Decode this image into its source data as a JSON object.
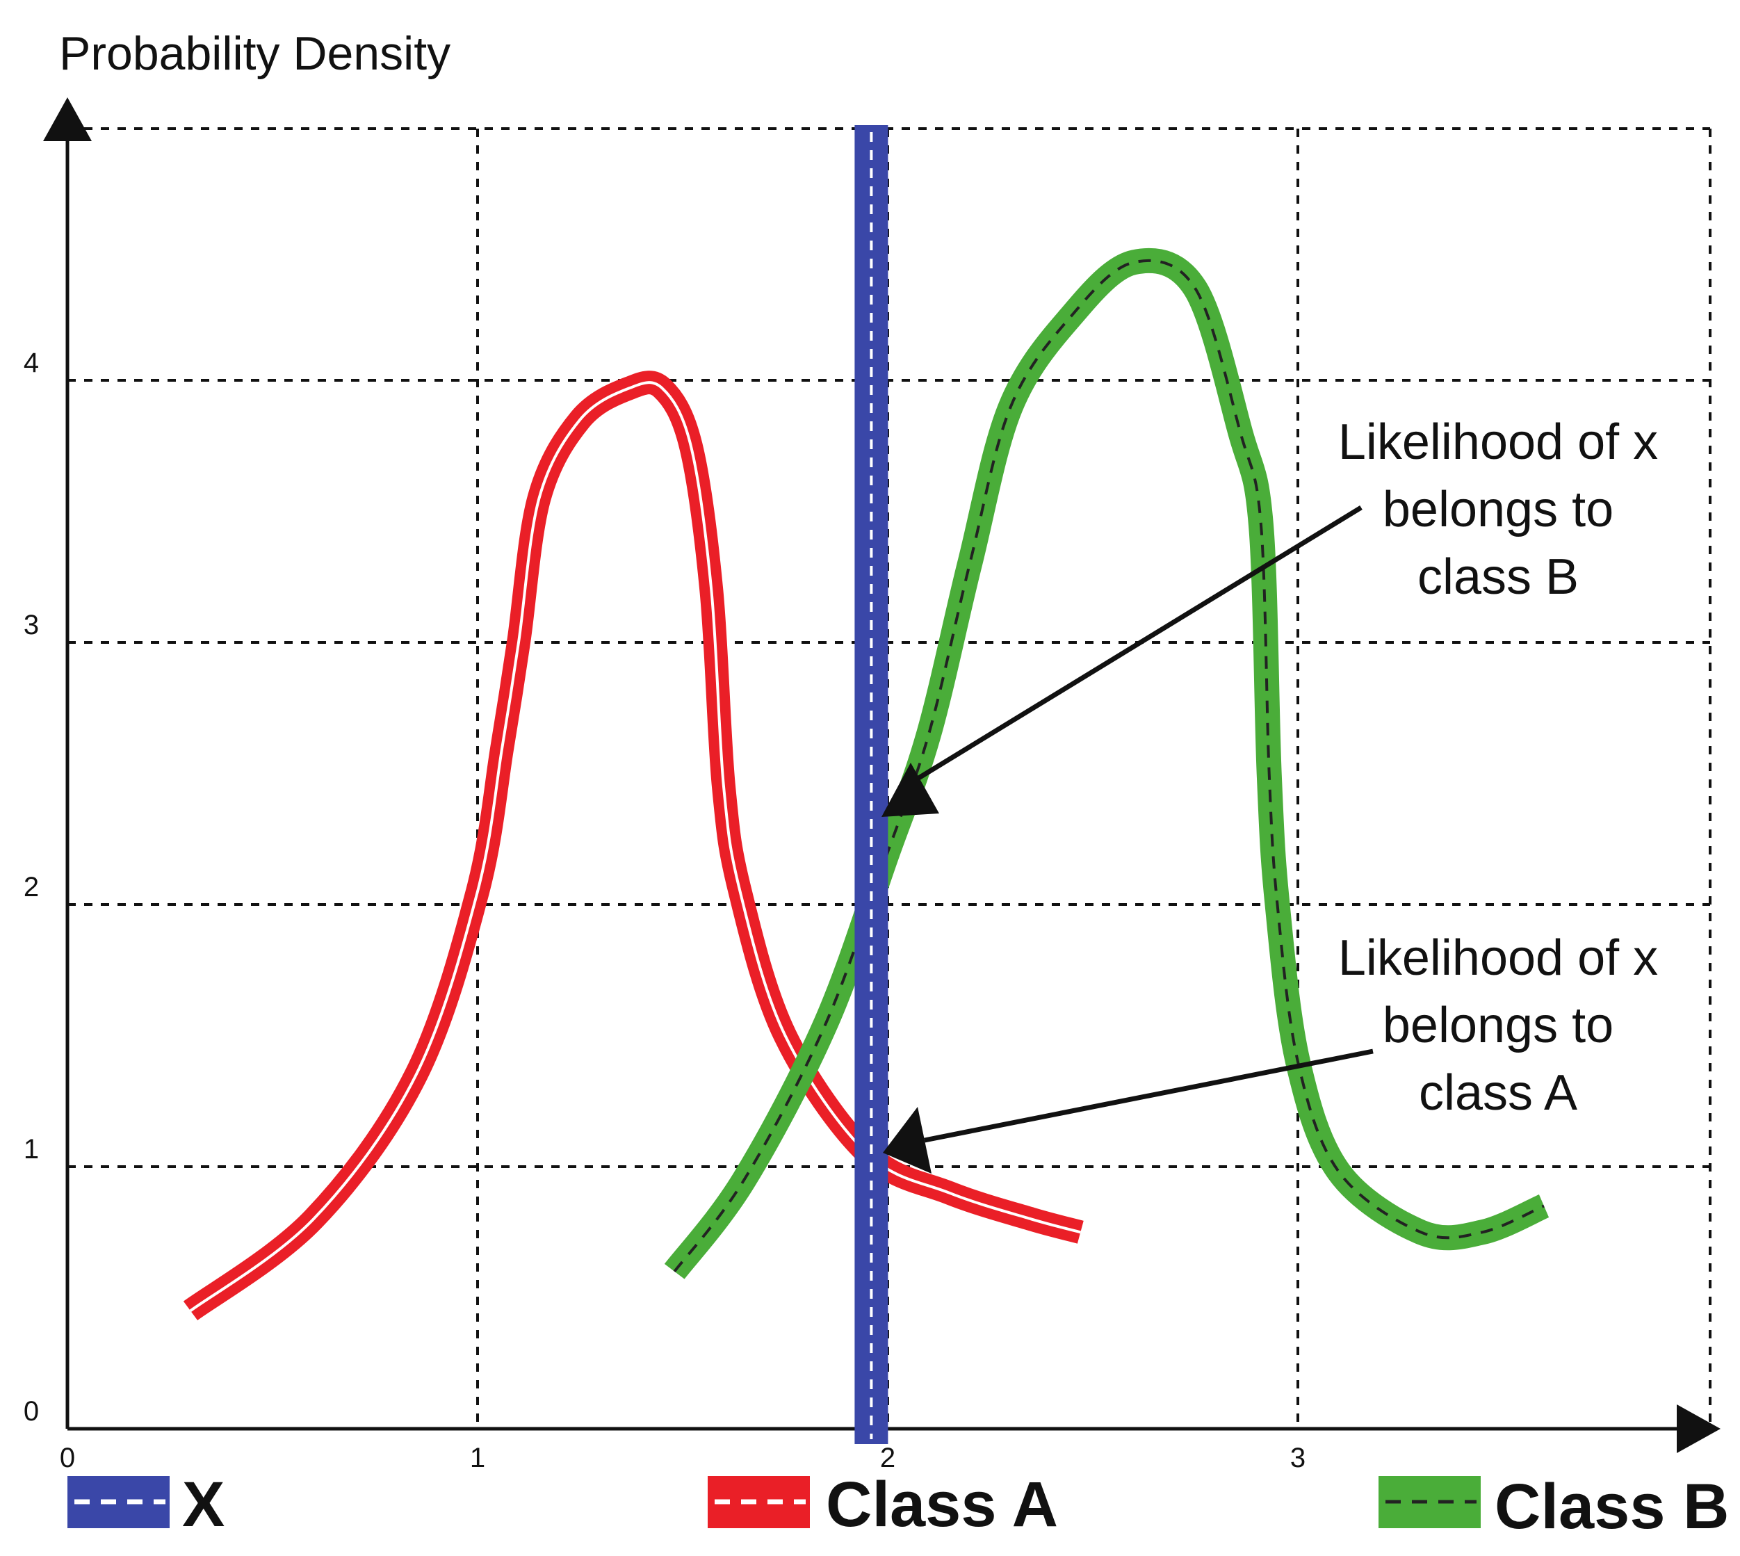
{
  "colors": {
    "x_line": "#3a47a8",
    "class_a": "#ea1f27",
    "class_b": "#4aad39",
    "axis": "#111111",
    "background": "#ffffff"
  },
  "chart_data": {
    "type": "line",
    "title": "",
    "xlabel": "",
    "ylabel": "Probability Density",
    "xlim": [
      0,
      4
    ],
    "ylim": [
      0,
      5
    ],
    "x_ticks": [
      "0",
      "1",
      "2",
      "3"
    ],
    "y_ticks": [
      "0",
      "1",
      "2",
      "3",
      "4"
    ],
    "grid": true,
    "grid_style": "dashed",
    "legend_position": "bottom",
    "series": [
      {
        "name": "X",
        "type": "vertical-line",
        "x": 1.96,
        "color": "#3a47a8"
      },
      {
        "name": "Class A",
        "color": "#ea1f27",
        "x": [
          0.3,
          0.6,
          0.85,
          1.0,
          1.06,
          1.1,
          1.15,
          1.25,
          1.37,
          1.45,
          1.52,
          1.57,
          1.6,
          1.64,
          1.75,
          1.95,
          2.15,
          2.35,
          2.47
        ],
        "y": [
          0.45,
          0.8,
          1.35,
          2.05,
          2.6,
          3.0,
          3.55,
          3.85,
          3.97,
          3.97,
          3.75,
          3.2,
          2.45,
          2.05,
          1.5,
          1.05,
          0.9,
          0.8,
          0.75
        ]
      },
      {
        "name": "Class B",
        "color": "#4aad39",
        "x": [
          1.48,
          1.65,
          1.85,
          2.0,
          2.1,
          2.2,
          2.3,
          2.45,
          2.6,
          2.75,
          2.86,
          2.91,
          2.93,
          2.95,
          3.0,
          3.1,
          3.3,
          3.45,
          3.6
        ],
        "y": [
          0.6,
          0.95,
          1.55,
          2.2,
          2.65,
          3.3,
          3.9,
          4.25,
          4.45,
          4.35,
          3.8,
          3.45,
          2.5,
          2.0,
          1.4,
          0.98,
          0.75,
          0.75,
          0.85
        ]
      }
    ],
    "annotations": [
      {
        "id": "b",
        "lines": [
          "Likelihood of x",
          "belongs to",
          "class B"
        ],
        "points_to": {
          "x": 1.96,
          "y": 2.35
        }
      },
      {
        "id": "a",
        "lines": [
          "Likelihood of x",
          "belongs to",
          "class A"
        ],
        "points_to": {
          "x": 1.96,
          "y": 1.0
        }
      }
    ]
  }
}
